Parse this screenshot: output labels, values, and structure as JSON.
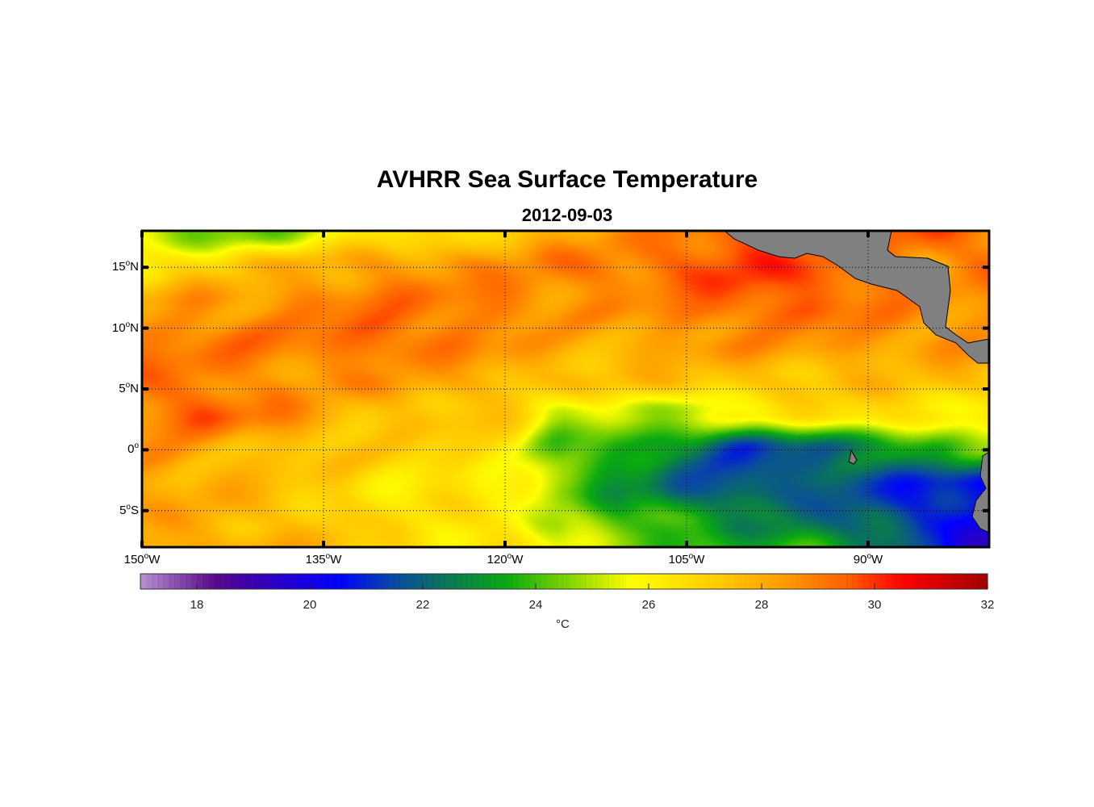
{
  "chart_data": {
    "type": "heatmap",
    "title": "AVHRR Sea Surface Temperature",
    "subtitle": "2012-09-03",
    "lon_range": [
      -150,
      -80
    ],
    "lat_range": [
      -8,
      18
    ],
    "x_ticks": [
      {
        "value": -150,
        "num": "150",
        "deg": "o",
        "hem": "W"
      },
      {
        "value": -135,
        "num": "135",
        "deg": "o",
        "hem": "W"
      },
      {
        "value": -120,
        "num": "120",
        "deg": "o",
        "hem": "W"
      },
      {
        "value": -105,
        "num": "105",
        "deg": "o",
        "hem": "W"
      },
      {
        "value": -90,
        "num": "90",
        "deg": "o",
        "hem": "W"
      }
    ],
    "y_ticks": [
      {
        "value": 15,
        "num": "15",
        "deg": "o",
        "hem": "N"
      },
      {
        "value": 10,
        "num": "10",
        "deg": "o",
        "hem": "N"
      },
      {
        "value": 5,
        "num": "5",
        "deg": "o",
        "hem": "N"
      },
      {
        "value": 0,
        "num": "0",
        "deg": "o",
        "hem": ""
      },
      {
        "value": -5,
        "num": "5",
        "deg": "o",
        "hem": "S"
      }
    ],
    "grid": true,
    "colorbar": {
      "range": [
        17,
        32
      ],
      "ticks": [
        "18",
        "20",
        "22",
        "24",
        "26",
        "28",
        "30",
        "32"
      ],
      "tick_values": [
        18,
        20,
        22,
        24,
        26,
        28,
        30,
        32
      ],
      "label": "°C",
      "stops": [
        [
          17,
          "#b490d0"
        ],
        [
          18.3,
          "#5a0a8a"
        ],
        [
          19,
          "#3a00b0"
        ],
        [
          20.5,
          "#0000ff"
        ],
        [
          21.5,
          "#0a4aa0"
        ],
        [
          22.5,
          "#0a7a50"
        ],
        [
          23.5,
          "#0aaa10"
        ],
        [
          24.7,
          "#90d800"
        ],
        [
          25.7,
          "#ffff00"
        ],
        [
          27.3,
          "#ffc800"
        ],
        [
          28.3,
          "#ffa000"
        ],
        [
          29.5,
          "#ff6000"
        ],
        [
          30.5,
          "#ff0000"
        ],
        [
          32,
          "#a00000"
        ]
      ]
    },
    "sst_grid": {
      "lons": [
        -150,
        -145,
        -140,
        -135,
        -130,
        -125,
        -120,
        -115,
        -110,
        -105,
        -100,
        -95,
        -90,
        -85,
        -80
      ],
      "lats": [
        18,
        15,
        12,
        9,
        6,
        3,
        0,
        -3,
        -6,
        -8
      ],
      "values": [
        [
          25,
          24.5,
          24.5,
          25.5,
          26.5,
          26.5,
          27.5,
          28,
          28.5,
          29,
          29.5,
          29.5,
          29.5,
          29.5,
          29
        ],
        [
          26.5,
          27,
          27.5,
          28,
          28.5,
          28.5,
          28.5,
          29,
          29,
          29.5,
          30,
          29.5,
          29.5,
          28.5,
          29
        ],
        [
          28,
          28.5,
          28.5,
          29,
          29,
          29,
          29,
          28.5,
          28.5,
          29,
          29.5,
          29.5,
          29,
          28.5,
          28.5
        ],
        [
          29,
          29,
          29,
          29,
          29.5,
          29,
          28.5,
          28,
          28,
          28.5,
          28.5,
          28.5,
          28.5,
          28.5,
          28.5
        ],
        [
          29,
          29,
          28.5,
          28.5,
          28.5,
          28,
          28,
          27.5,
          27.5,
          27.5,
          27.5,
          27.5,
          27.5,
          27.5,
          27.5
        ],
        [
          29,
          29.5,
          29,
          28,
          27.5,
          27.5,
          27,
          25.2,
          25.5,
          25,
          26,
          26.5,
          27,
          26.5,
          26
        ],
        [
          28.5,
          28,
          27.5,
          27.5,
          27,
          27,
          26.5,
          24,
          23.5,
          22.5,
          21.3,
          22,
          22.5,
          23.5,
          24.5
        ],
        [
          28,
          28,
          27.5,
          27,
          26.5,
          26.5,
          26,
          24.5,
          23,
          22,
          21.5,
          22,
          21.5,
          21,
          20.5
        ],
        [
          28,
          28,
          27.5,
          27.5,
          26.5,
          26.5,
          26.5,
          25,
          24,
          23.5,
          23,
          22.5,
          22,
          21,
          20
        ],
        [
          28.5,
          28,
          28,
          27.5,
          27,
          26.5,
          26.5,
          25.5,
          24.5,
          24,
          23.5,
          23.5,
          22.5,
          21.5,
          19.5
        ]
      ]
    },
    "land_color": "#808080"
  }
}
